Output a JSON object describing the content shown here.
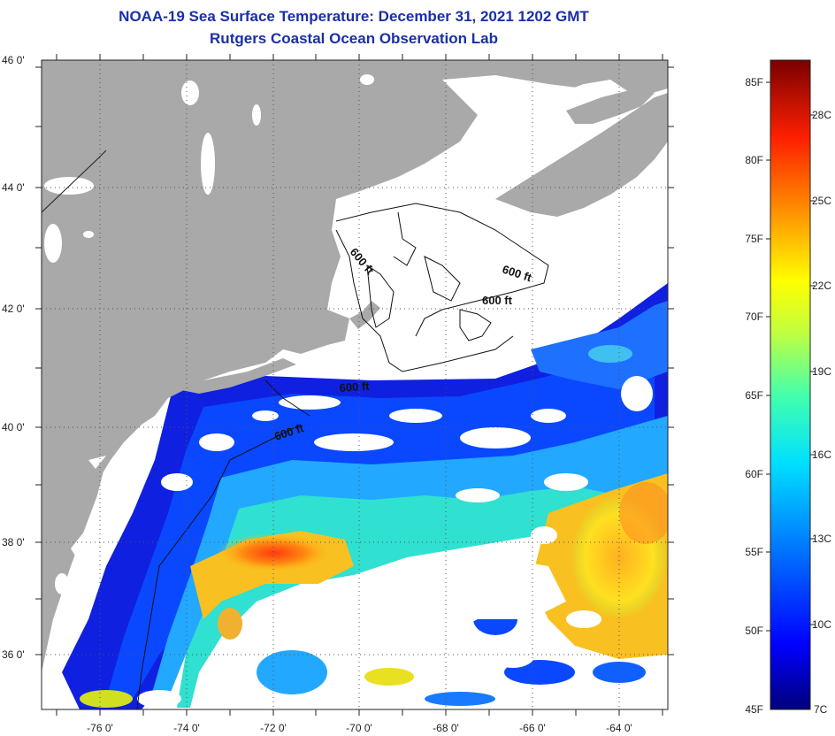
{
  "header": {
    "title": "NOAA-19 Sea Surface Temperature:  December 31, 2021 1202 GMT",
    "subtitle": "Rutgers Coastal Ocean Observation Lab"
  },
  "axes": {
    "lat_labels": [
      "46 0'",
      "44 0'",
      "42 0'",
      "40 0'",
      "38 0'",
      "36 0'"
    ],
    "lon_labels": [
      "-76 0'",
      "-74 0'",
      "-72 0'",
      "-70 0'",
      "-68 0'",
      "-66 0'",
      "-64 0'"
    ]
  },
  "contours": {
    "labels": [
      "600 ft",
      "600 ft",
      "600 ft",
      "600 ft",
      "600 ft"
    ]
  },
  "colorbar": {
    "fahrenheit": [
      "85F",
      "80F",
      "75F",
      "70F",
      "65F",
      "60F",
      "55F",
      "50F",
      "45F"
    ],
    "celsius": [
      "28C",
      "25C",
      "22C",
      "19C",
      "16C",
      "13C",
      "10C",
      "7C"
    ]
  },
  "colors": {
    "land": "#a9a9a9",
    "cloud": "#ffffff",
    "title": "#1a2fa8"
  }
}
